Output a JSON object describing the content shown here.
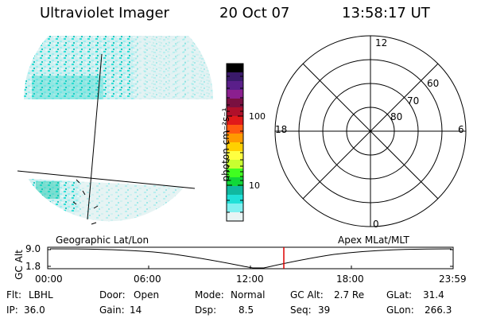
{
  "header": {
    "title": "Ultraviolet Imager",
    "date": "20 Oct 07",
    "time": "13:58:17 UT"
  },
  "colorbar": {
    "label": "photon cm⁻²s⁻¹",
    "ticks": [
      "100",
      "10"
    ],
    "colors": [
      "#000000",
      "#3a1a6a",
      "#5a1f8a",
      "#8b1f8f",
      "#7a1040",
      "#b0102a",
      "#e01a1a",
      "#ff5a10",
      "#ff9a00",
      "#ffd000",
      "#ffff40",
      "#c8ff30",
      "#40ff20",
      "#10d838",
      "#10b8a0",
      "#20e0d8",
      "#80f0f0",
      "#e8f4f4"
    ]
  },
  "polar": {
    "mlt_labels": [
      "12",
      "18",
      "6",
      "0"
    ],
    "mlat_labels": [
      "60",
      "70",
      "80"
    ]
  },
  "left_labels": {
    "geo": "Geographic Lat/Lon",
    "apex": "Apex MLat/MLT"
  },
  "altitude_plot": {
    "ylabel": "GC Alt",
    "yticks": [
      "9.0",
      "1.8"
    ],
    "xticks": [
      "00:00",
      "06:00",
      "12:00",
      "18:00",
      "23:59"
    ],
    "marker_color": "#dd0000"
  },
  "footer": {
    "row1": [
      {
        "label": "Flt:",
        "value": "LBHL"
      },
      {
        "label": "Door:",
        "value": "Open"
      },
      {
        "label": "Mode:",
        "value": "Normal"
      },
      {
        "label": "GC Alt:",
        "value": "2.7 Re"
      },
      {
        "label": "GLat:",
        "value": "31.4"
      }
    ],
    "row2": [
      {
        "label": "IP:",
        "value": "36.0"
      },
      {
        "label": "Gain:",
        "value": "14"
      },
      {
        "label": "Dsp:",
        "value": "8.5"
      },
      {
        "label": "Seq:",
        "value": "39"
      },
      {
        "label": "GLon:",
        "value": "266.3"
      }
    ]
  }
}
